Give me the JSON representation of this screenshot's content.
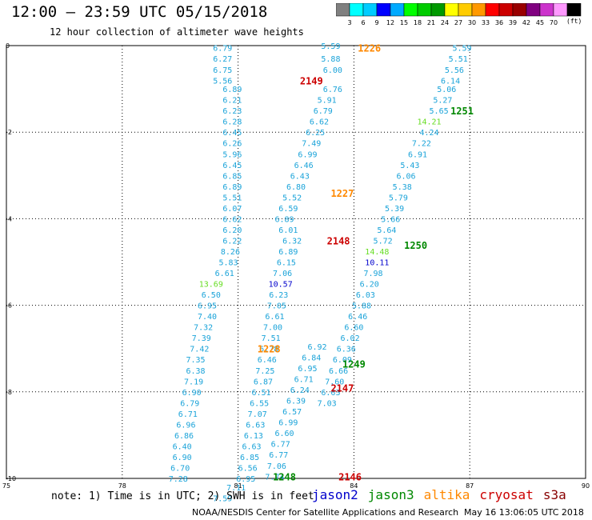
{
  "header": {
    "title": "12:00 – 23:59 UTC 05/15/2018",
    "subtitle": "12 hour collection of altimeter wave heights"
  },
  "scale": {
    "unit": "(ft)",
    "colors": [
      "#808080",
      "#00ffff",
      "#00ccff",
      "#0000ff",
      "#00aaff",
      "#00ff00",
      "#00cc00",
      "#009900",
      "#ffff00",
      "#ffcc00",
      "#ff9900",
      "#ff0000",
      "#cc0000",
      "#990000",
      "#800080",
      "#cc33cc",
      "#ff99ff",
      "#000000"
    ],
    "labels": [
      "3",
      "6",
      "9",
      "12",
      "15",
      "18",
      "21",
      "24",
      "27",
      "30",
      "33",
      "36",
      "39",
      "42",
      "45",
      "70"
    ]
  },
  "note": "note: 1) Time is in UTC; 2) SWH is in feet",
  "legend": [
    {
      "name": "jason2",
      "color": "#0000cc"
    },
    {
      "name": "jason3",
      "color": "#008800"
    },
    {
      "name": "altika",
      "color": "#ff8800"
    },
    {
      "name": "cryosat",
      "color": "#cc0000"
    },
    {
      "name": "s3a",
      "color": "#880000"
    }
  ],
  "credit": "NOAA/NESDIS Center for Satellite Applications and Research",
  "credit_time": "May 16 13:06:05 UTC 2018",
  "chart_data": {
    "type": "scatter",
    "xlim": [
      75,
      90
    ],
    "ylim": [
      -10,
      0
    ],
    "x_ticks": [
      "75",
      "78",
      "81",
      "84",
      "87",
      "90"
    ],
    "y_ticks": [
      "0",
      "-2",
      "-4",
      "-6",
      "-8",
      "-10"
    ],
    "grid": true,
    "passes": [
      {
        "label": "1226",
        "x": 84.4,
        "y": -0.05,
        "color": "#ff8800"
      },
      {
        "label": "2149",
        "x": 82.9,
        "y": -0.8,
        "color": "#cc0000"
      },
      {
        "label": "1251",
        "x": 86.8,
        "y": -1.5,
        "color": "#008800"
      },
      {
        "label": "1227",
        "x": 83.7,
        "y": -3.4,
        "color": "#ff8800"
      },
      {
        "label": "2148",
        "x": 83.6,
        "y": -4.5,
        "color": "#cc0000"
      },
      {
        "label": "1250",
        "x": 85.6,
        "y": -4.6,
        "color": "#008800"
      },
      {
        "label": "1228",
        "x": 81.8,
        "y": -7.0,
        "color": "#ff8800"
      },
      {
        "label": "1249",
        "x": 84.0,
        "y": -7.35,
        "color": "#008800"
      },
      {
        "label": "2147",
        "x": 83.7,
        "y": -7.9,
        "color": "#cc0000"
      },
      {
        "label": "1248",
        "x": 82.2,
        "y": -9.95,
        "color": "#008800"
      },
      {
        "label": "2146",
        "x": 83.9,
        "y": -9.95,
        "color": "#cc0000"
      }
    ],
    "points": [
      {
        "x": 80.6,
        "y": -0.05,
        "v": "6.79"
      },
      {
        "x": 80.6,
        "y": -0.3,
        "v": "6.27"
      },
      {
        "x": 80.6,
        "y": -0.55,
        "v": "6.75"
      },
      {
        "x": 80.6,
        "y": -0.8,
        "v": "5.56"
      },
      {
        "x": 80.85,
        "y": -1.0,
        "v": "6.89"
      },
      {
        "x": 80.85,
        "y": -1.25,
        "v": "6.21"
      },
      {
        "x": 80.85,
        "y": -1.5,
        "v": "6.23"
      },
      {
        "x": 80.85,
        "y": -1.75,
        "v": "6.28"
      },
      {
        "x": 80.85,
        "y": -2.0,
        "v": "6.45"
      },
      {
        "x": 80.85,
        "y": -2.25,
        "v": "6.26"
      },
      {
        "x": 80.85,
        "y": -2.5,
        "v": "5.96"
      },
      {
        "x": 80.85,
        "y": -2.75,
        "v": "6.45"
      },
      {
        "x": 80.85,
        "y": -3.0,
        "v": "6.85"
      },
      {
        "x": 80.85,
        "y": -3.25,
        "v": "6.89"
      },
      {
        "x": 80.85,
        "y": -3.5,
        "v": "5.51"
      },
      {
        "x": 80.85,
        "y": -3.75,
        "v": "6.07"
      },
      {
        "x": 80.85,
        "y": -4.0,
        "v": "6.62"
      },
      {
        "x": 80.85,
        "y": -4.25,
        "v": "6.20"
      },
      {
        "x": 80.85,
        "y": -4.5,
        "v": "6.22"
      },
      {
        "x": 80.8,
        "y": -4.75,
        "v": "8.26"
      },
      {
        "x": 80.75,
        "y": -5.0,
        "v": "5.83"
      },
      {
        "x": 80.65,
        "y": -5.25,
        "v": "6.61"
      },
      {
        "x": 80.3,
        "y": -5.5,
        "v": "13.69"
      },
      {
        "x": 80.3,
        "y": -5.75,
        "v": "6.50"
      },
      {
        "x": 80.2,
        "y": -6.0,
        "v": "6.95"
      },
      {
        "x": 80.2,
        "y": -6.25,
        "v": "7.40"
      },
      {
        "x": 80.1,
        "y": -6.5,
        "v": "7.32"
      },
      {
        "x": 80.05,
        "y": -6.75,
        "v": "7.39"
      },
      {
        "x": 80.0,
        "y": -7.0,
        "v": "7.42"
      },
      {
        "x": 79.9,
        "y": -7.25,
        "v": "7.35"
      },
      {
        "x": 79.9,
        "y": -7.5,
        "v": "6.38"
      },
      {
        "x": 79.85,
        "y": -7.75,
        "v": "7.19"
      },
      {
        "x": 79.8,
        "y": -8.0,
        "v": "6.90"
      },
      {
        "x": 79.75,
        "y": -8.25,
        "v": "6.79"
      },
      {
        "x": 79.7,
        "y": -8.5,
        "v": "6.71"
      },
      {
        "x": 79.65,
        "y": -8.75,
        "v": "6.96"
      },
      {
        "x": 79.6,
        "y": -9.0,
        "v": "6.86"
      },
      {
        "x": 79.55,
        "y": -9.25,
        "v": "6.40"
      },
      {
        "x": 79.55,
        "y": -9.5,
        "v": "6.90"
      },
      {
        "x": 79.5,
        "y": -9.75,
        "v": "6.70"
      },
      {
        "x": 79.45,
        "y": -10.0,
        "v": "7.28"
      },
      {
        "x": 83.4,
        "y": 0.0,
        "v": "5.59"
      },
      {
        "x": 83.4,
        "y": -0.3,
        "v": "5.88"
      },
      {
        "x": 83.45,
        "y": -0.55,
        "v": "6.00"
      },
      {
        "x": 83.45,
        "y": -1.0,
        "v": "6.76"
      },
      {
        "x": 83.3,
        "y": -1.25,
        "v": "5.91"
      },
      {
        "x": 83.2,
        "y": -1.5,
        "v": "6.79"
      },
      {
        "x": 83.1,
        "y": -1.75,
        "v": "6.62"
      },
      {
        "x": 83.0,
        "y": -2.0,
        "v": "6.25"
      },
      {
        "x": 82.9,
        "y": -2.25,
        "v": "7.49"
      },
      {
        "x": 82.8,
        "y": -2.5,
        "v": "6.99"
      },
      {
        "x": 82.7,
        "y": -2.75,
        "v": "6.46"
      },
      {
        "x": 82.6,
        "y": -3.0,
        "v": "6.43"
      },
      {
        "x": 82.5,
        "y": -3.25,
        "v": "6.80"
      },
      {
        "x": 82.4,
        "y": -3.5,
        "v": "5.52"
      },
      {
        "x": 82.3,
        "y": -3.75,
        "v": "6.59"
      },
      {
        "x": 82.2,
        "y": -4.0,
        "v": "6.89"
      },
      {
        "x": 82.3,
        "y": -4.25,
        "v": "6.01"
      },
      {
        "x": 82.4,
        "y": -4.5,
        "v": "6.32"
      },
      {
        "x": 82.3,
        "y": -4.75,
        "v": "6.89"
      },
      {
        "x": 82.25,
        "y": -5.0,
        "v": "6.15"
      },
      {
        "x": 82.15,
        "y": -5.25,
        "v": "7.06"
      },
      {
        "x": 82.1,
        "y": -5.5,
        "v": "10.57"
      },
      {
        "x": 82.05,
        "y": -5.75,
        "v": "6.23"
      },
      {
        "x": 82.0,
        "y": -6.0,
        "v": "7.05"
      },
      {
        "x": 81.95,
        "y": -6.25,
        "v": "6.61"
      },
      {
        "x": 81.9,
        "y": -6.5,
        "v": "7.00"
      },
      {
        "x": 81.85,
        "y": -6.75,
        "v": "7.51"
      },
      {
        "x": 81.8,
        "y": -7.0,
        "v": "6.78"
      },
      {
        "x": 81.75,
        "y": -7.25,
        "v": "6.46"
      },
      {
        "x": 81.7,
        "y": -7.5,
        "v": "7.25"
      },
      {
        "x": 81.65,
        "y": -7.75,
        "v": "6.87"
      },
      {
        "x": 81.6,
        "y": -8.0,
        "v": "6.51"
      },
      {
        "x": 81.55,
        "y": -8.25,
        "v": "6.55"
      },
      {
        "x": 81.5,
        "y": -8.5,
        "v": "7.07"
      },
      {
        "x": 81.45,
        "y": -8.75,
        "v": "6.63"
      },
      {
        "x": 81.4,
        "y": -9.0,
        "v": "6.13"
      },
      {
        "x": 81.35,
        "y": -9.25,
        "v": "6.63"
      },
      {
        "x": 81.3,
        "y": -9.5,
        "v": "6.85"
      },
      {
        "x": 81.25,
        "y": -9.75,
        "v": "6.56"
      },
      {
        "x": 81.2,
        "y": -10.0,
        "v": "6.95"
      },
      {
        "x": 80.95,
        "y": -10.2,
        "v": "7.11"
      },
      {
        "x": 80.6,
        "y": -10.45,
        "v": "7.59"
      },
      {
        "x": 83.05,
        "y": -6.95,
        "v": "6.92"
      },
      {
        "x": 82.9,
        "y": -7.2,
        "v": "6.84"
      },
      {
        "x": 82.8,
        "y": -7.45,
        "v": "6.95"
      },
      {
        "x": 82.7,
        "y": -7.7,
        "v": "6.71"
      },
      {
        "x": 82.6,
        "y": -7.95,
        "v": "6.24"
      },
      {
        "x": 82.5,
        "y": -8.2,
        "v": "6.39"
      },
      {
        "x": 82.4,
        "y": -8.45,
        "v": "6.57"
      },
      {
        "x": 82.3,
        "y": -8.7,
        "v": "6.99"
      },
      {
        "x": 82.2,
        "y": -8.95,
        "v": "6.60"
      },
      {
        "x": 82.1,
        "y": -9.2,
        "v": "6.77"
      },
      {
        "x": 82.05,
        "y": -9.45,
        "v": "6.77"
      },
      {
        "x": 82.0,
        "y": -9.7,
        "v": "7.06"
      },
      {
        "x": 81.95,
        "y": -9.95,
        "v": "7.74"
      },
      {
        "x": 86.8,
        "y": -0.05,
        "v": "5.59"
      },
      {
        "x": 86.7,
        "y": -0.3,
        "v": "5.51"
      },
      {
        "x": 86.6,
        "y": -0.55,
        "v": "5.56"
      },
      {
        "x": 86.5,
        "y": -0.8,
        "v": "6.14"
      },
      {
        "x": 86.4,
        "y": -1.0,
        "v": "5.06"
      },
      {
        "x": 86.3,
        "y": -1.25,
        "v": "5.27"
      },
      {
        "x": 86.2,
        "y": -1.5,
        "v": "5.65"
      },
      {
        "x": 85.95,
        "y": -1.75,
        "v": "14.21"
      },
      {
        "x": 85.95,
        "y": -2.0,
        "v": "4.24"
      },
      {
        "x": 85.75,
        "y": -2.25,
        "v": "7.22"
      },
      {
        "x": 85.65,
        "y": -2.5,
        "v": "6.91"
      },
      {
        "x": 85.45,
        "y": -2.75,
        "v": "5.43"
      },
      {
        "x": 85.35,
        "y": -3.0,
        "v": "6.06"
      },
      {
        "x": 85.25,
        "y": -3.25,
        "v": "5.38"
      },
      {
        "x": 85.15,
        "y": -3.5,
        "v": "5.79"
      },
      {
        "x": 85.05,
        "y": -3.75,
        "v": "5.39"
      },
      {
        "x": 84.95,
        "y": -4.0,
        "v": "5.66"
      },
      {
        "x": 84.85,
        "y": -4.25,
        "v": "5.64"
      },
      {
        "x": 84.75,
        "y": -4.5,
        "v": "5.72"
      },
      {
        "x": 84.6,
        "y": -4.75,
        "v": "14.48"
      },
      {
        "x": 84.6,
        "y": -5.0,
        "v": "10.11"
      },
      {
        "x": 84.5,
        "y": -5.25,
        "v": "7.98"
      },
      {
        "x": 84.4,
        "y": -5.5,
        "v": "6.20"
      },
      {
        "x": 84.3,
        "y": -5.75,
        "v": "6.03"
      },
      {
        "x": 84.2,
        "y": -6.0,
        "v": "5.88"
      },
      {
        "x": 84.1,
        "y": -6.25,
        "v": "6.46"
      },
      {
        "x": 84.0,
        "y": -6.5,
        "v": "6.60"
      },
      {
        "x": 83.9,
        "y": -6.75,
        "v": "6.02"
      },
      {
        "x": 83.8,
        "y": -7.0,
        "v": "6.36"
      },
      {
        "x": 83.7,
        "y": -7.25,
        "v": "6.09"
      },
      {
        "x": 83.6,
        "y": -7.5,
        "v": "6.66"
      },
      {
        "x": 83.5,
        "y": -7.75,
        "v": "7.60"
      },
      {
        "x": 83.4,
        "y": -8.0,
        "v": "6.63"
      },
      {
        "x": 83.3,
        "y": -8.25,
        "v": "7.03"
      }
    ]
  }
}
